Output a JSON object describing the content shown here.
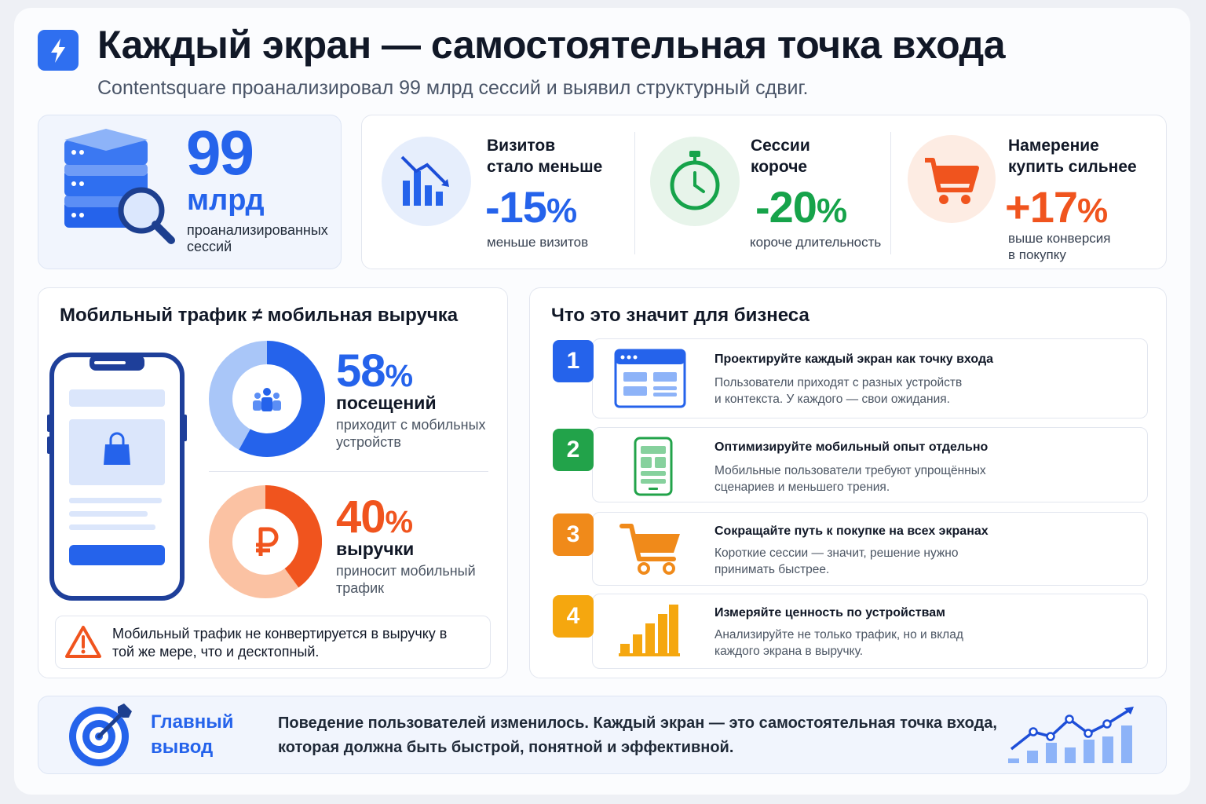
{
  "header": {
    "title": "Каждый экран — самостоятельная точка входа",
    "subtitle": "Contentsquare проанализировал 99 млрд сессий и выявил структурный сдвиг.",
    "logo_icon": "lightning-icon"
  },
  "sessions": {
    "value": "99",
    "unit": "млрд",
    "note": "проанализированных сессий",
    "icon": "database-search-icon"
  },
  "stats": [
    {
      "heading_line1": "Визитов",
      "heading_line2": "стало меньше",
      "value": "-15",
      "pct": "%",
      "sub_line1": "меньше визитов",
      "sub_line2": "",
      "color": "#2563eb",
      "icon": "trend-down-chart-icon"
    },
    {
      "heading_line1": "Сессии",
      "heading_line2": "короче",
      "value": "-20",
      "pct": "%",
      "sub_line1": "короче длительность",
      "sub_line2": "",
      "color": "#16a34a",
      "icon": "stopwatch-icon"
    },
    {
      "heading_line1": "Намерение",
      "heading_line2": "купить сильнее",
      "value": "+17",
      "pct": "%",
      "sub_line1": "выше конверсия",
      "sub_line2": "в покупку",
      "color": "#f0541e",
      "icon": "cart-icon"
    }
  ],
  "mobile": {
    "title": "Мобильный трафик ≠ мобильная выручка",
    "visits": {
      "value": "58",
      "pct": "%",
      "word": "посещений",
      "desc": "приходит с мобильных устройств",
      "fraction": 0.58,
      "color": "#2563eb",
      "icon": "users-icon"
    },
    "revenue": {
      "value": "40",
      "pct": "%",
      "word": "выручки",
      "desc": "приносит мобильный трафик",
      "fraction": 0.4,
      "color": "#f0541e",
      "icon": "ruble-icon"
    },
    "warning": "Мобильный трафик не конвертируется в выручку в той же мере, что и десктопный.",
    "warning_icon": "warning-icon"
  },
  "business": {
    "title": "Что это значит для бизнеса",
    "steps": [
      {
        "num": "1",
        "title": "Проектируйте каждый экран как точку входа",
        "desc_line1": "Пользователи приходят с разных устройств",
        "desc_line2": "и контекста. У каждого — свои ожидания.",
        "color": "#2563eb",
        "icon": "browser-window-icon"
      },
      {
        "num": "2",
        "title": "Оптимизируйте мобильный опыт отдельно",
        "desc_line1": "Мобильные пользователи требуют упрощённых",
        "desc_line2": "сценариев и меньшего трения.",
        "color": "#22a34a",
        "icon": "smartphone-icon"
      },
      {
        "num": "3",
        "title": "Сокращайте путь к покупке на всех экранах",
        "desc_line1": "Короткие сессии — значит, решение нужно",
        "desc_line2": "принимать быстрее.",
        "color": "#f08a1a",
        "icon": "cart-icon"
      },
      {
        "num": "4",
        "title": "Измеряйте ценность по устройствам",
        "desc_line1": "Анализируйте не только трафик, но и вклад",
        "desc_line2": "каждого экрана в выручку.",
        "color": "#f5a70f",
        "icon": "bar-chart-icon"
      }
    ]
  },
  "conclusion": {
    "title": "Главный вывод",
    "text": "Поведение пользователей изменилось. Каждый экран — это самостоятельная точка входа, которая должна быть быстрой, понятной и эффективной.",
    "icon": "target-icon",
    "chart_icon": "growth-chart-icon"
  }
}
